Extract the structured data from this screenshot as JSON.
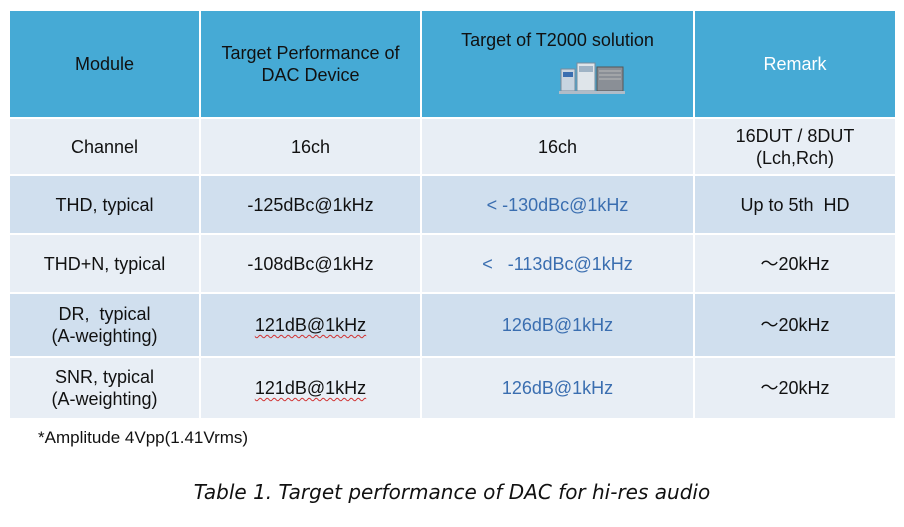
{
  "table": {
    "header": {
      "module": "Module",
      "target_perf": [
        "Target Performance of",
        "DAC Device"
      ],
      "target_t2000": "Target of T2000 solution",
      "remark": "Remark"
    },
    "rows": [
      {
        "module": [
          "Channel"
        ],
        "target": "16ch",
        "t2000": "16ch",
        "remark": [
          "16DUT / 8DUT",
          "(Lch,Rch)"
        ]
      },
      {
        "module": [
          "THD, typical"
        ],
        "target": "-125dBc@1kHz",
        "t2000": "< -130dBc@1kHz",
        "remark": [
          "Up to 5th  HD"
        ]
      },
      {
        "module": [
          "THD+N, typical"
        ],
        "target": "-108dBc@1kHz",
        "t2000": "<   -113dBc@1kHz",
        "remark": [
          "～20kHz"
        ]
      },
      {
        "module": [
          "DR,  typical",
          "(A-weighting)"
        ],
        "target": "121dB@1kHz",
        "t2000": "126dB@1kHz",
        "remark": [
          "～20kHz"
        ]
      },
      {
        "module": [
          "SNR, typical",
          "(A-weighting)"
        ],
        "target": "121dB@1kHz",
        "t2000": "126dB@1kHz",
        "remark": [
          "～20kHz"
        ]
      }
    ]
  },
  "note": "*Amplitude 4Vpp(1.41Vrms)",
  "caption": "Table 1. Target performance of DAC for hi-res audio",
  "colors": {
    "header": "#46aad5",
    "row_light": "#e8eef5",
    "row_dark": "#d0dfee",
    "t2000_text": "#3a6eb0"
  },
  "icons": {
    "t2000_image": "test-equipment-icon"
  }
}
